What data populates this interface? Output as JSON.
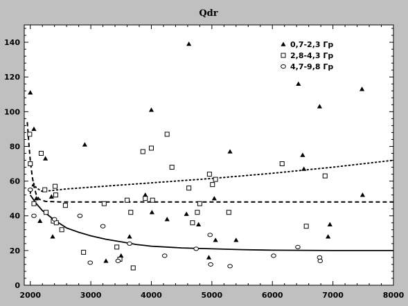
{
  "chart_data": {
    "type": "scatter",
    "title": "Qdr",
    "xlabel": "",
    "ylabel": "",
    "xlim": [
      1900,
      8000
    ],
    "ylim": [
      0,
      150
    ],
    "xticks": [
      2000,
      3000,
      4000,
      5000,
      6000,
      7000,
      8000
    ],
    "yticks": [
      0,
      20,
      40,
      60,
      80,
      100,
      120,
      140
    ],
    "grid": false,
    "legend_position": "top-right",
    "colors": {
      "background": "#c0c0c0",
      "plot_area": "#ffffff",
      "marks": "#000000"
    },
    "series": [
      {
        "name": "0,7-2,3 Гр",
        "marker": "triangle",
        "points": [
          [
            2000,
            111
          ],
          [
            2060,
            90
          ],
          [
            2100,
            50
          ],
          [
            2160,
            37
          ],
          [
            2250,
            73
          ],
          [
            2350,
            51
          ],
          [
            2370,
            28
          ],
          [
            2900,
            81
          ],
          [
            3250,
            14
          ],
          [
            3500,
            17
          ],
          [
            3640,
            28
          ],
          [
            3900,
            52
          ],
          [
            4000,
            101
          ],
          [
            4010,
            42
          ],
          [
            4260,
            38
          ],
          [
            4580,
            41
          ],
          [
            4620,
            139
          ],
          [
            4780,
            35
          ],
          [
            4950,
            16
          ],
          [
            5040,
            50
          ],
          [
            5060,
            26
          ],
          [
            5300,
            77
          ],
          [
            5400,
            26
          ],
          [
            6430,
            116
          ],
          [
            6500,
            75
          ],
          [
            6520,
            67
          ],
          [
            6780,
            103
          ],
          [
            6920,
            28
          ],
          [
            6950,
            35
          ],
          [
            7480,
            113
          ],
          [
            7490,
            52
          ]
        ]
      },
      {
        "name": "2,8-4,3 Гр",
        "marker": "square",
        "points": [
          [
            1990,
            87
          ],
          [
            2000,
            70
          ],
          [
            2060,
            47
          ],
          [
            2180,
            76
          ],
          [
            2240,
            55
          ],
          [
            2260,
            42
          ],
          [
            2380,
            37
          ],
          [
            2410,
            57
          ],
          [
            2420,
            52
          ],
          [
            2430,
            36
          ],
          [
            2520,
            32
          ],
          [
            2580,
            46
          ],
          [
            2880,
            19
          ],
          [
            3220,
            47
          ],
          [
            3430,
            22
          ],
          [
            3480,
            15
          ],
          [
            3600,
            49
          ],
          [
            3660,
            42
          ],
          [
            3700,
            10
          ],
          [
            3860,
            77
          ],
          [
            3900,
            50
          ],
          [
            4000,
            79
          ],
          [
            4020,
            49
          ],
          [
            4260,
            87
          ],
          [
            4340,
            68
          ],
          [
            4620,
            56
          ],
          [
            4680,
            36
          ],
          [
            4760,
            42
          ],
          [
            4800,
            47
          ],
          [
            4960,
            64
          ],
          [
            5010,
            58
          ],
          [
            5060,
            61
          ],
          [
            5280,
            42
          ],
          [
            6160,
            70
          ],
          [
            6560,
            34
          ],
          [
            6870,
            63
          ]
        ]
      },
      {
        "name": "4,7-9,8 Гр",
        "marker": "circle",
        "points": [
          [
            2000,
            55
          ],
          [
            2060,
            40
          ],
          [
            2400,
            38
          ],
          [
            2820,
            40
          ],
          [
            2990,
            13
          ],
          [
            3200,
            34
          ],
          [
            3450,
            14
          ],
          [
            3640,
            24
          ],
          [
            4220,
            17
          ],
          [
            4740,
            21
          ],
          [
            4970,
            29
          ],
          [
            4980,
            12
          ],
          [
            5300,
            11
          ],
          [
            6020,
            17
          ],
          [
            6420,
            22
          ],
          [
            6780,
            16
          ],
          [
            6790,
            14
          ]
        ]
      }
    ],
    "trendlines": [
      {
        "series": "0,7-2,3 Гр",
        "style": "dotted",
        "points": [
          [
            2000,
            53
          ],
          [
            2050,
            59
          ],
          [
            2100,
            56
          ],
          [
            2200,
            54
          ],
          [
            2600,
            55.5
          ],
          [
            3000,
            56.5
          ],
          [
            4000,
            59
          ],
          [
            5000,
            61.5
          ],
          [
            6000,
            64.5
          ],
          [
            7000,
            68
          ],
          [
            8000,
            72
          ]
        ]
      },
      {
        "series": "2,8-4,3 Гр",
        "style": "dashed",
        "points": [
          [
            1950,
            94
          ],
          [
            1975,
            82
          ],
          [
            2000,
            72
          ],
          [
            2030,
            63
          ],
          [
            2060,
            57
          ],
          [
            2100,
            52
          ],
          [
            2150,
            49.5
          ],
          [
            2250,
            48.3
          ],
          [
            2500,
            48
          ],
          [
            3000,
            48
          ],
          [
            4000,
            48
          ],
          [
            5000,
            48
          ],
          [
            6000,
            48
          ],
          [
            7000,
            48
          ],
          [
            8000,
            48
          ]
        ]
      },
      {
        "series": "4,7-9,8 Гр",
        "style": "solid",
        "points": [
          [
            2000,
            52
          ],
          [
            2100,
            47
          ],
          [
            2200,
            43
          ],
          [
            2400,
            37.5
          ],
          [
            2600,
            33
          ],
          [
            2800,
            30.5
          ],
          [
            3000,
            28.5
          ],
          [
            3250,
            26.5
          ],
          [
            3500,
            25
          ],
          [
            3750,
            23.5
          ],
          [
            4000,
            22.5
          ],
          [
            4500,
            21.5
          ],
          [
            5000,
            21
          ],
          [
            5500,
            20.5
          ],
          [
            6000,
            20.2
          ],
          [
            7000,
            20
          ],
          [
            8000,
            20
          ]
        ]
      }
    ]
  }
}
